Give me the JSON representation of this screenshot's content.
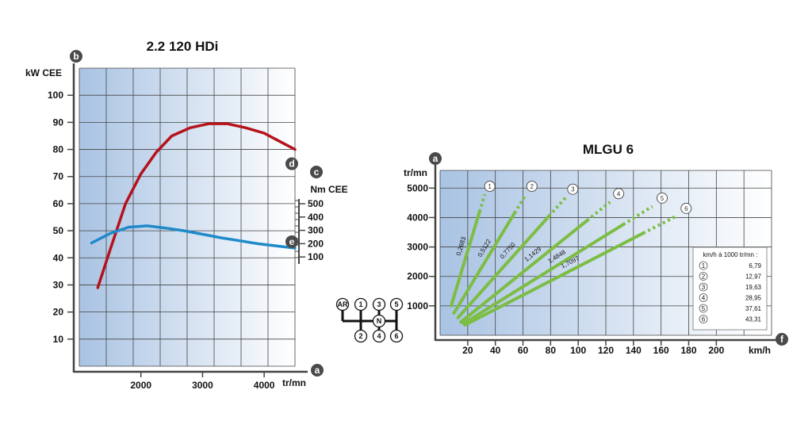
{
  "chart_data": [
    {
      "type": "line",
      "title": "2.2  120 HDi",
      "xlabel": "tr/mn",
      "x_ticks": [
        2000,
        3000,
        4000
      ],
      "xlim": [
        1000,
        4500
      ],
      "left_axis": {
        "badge": "b",
        "label": "kW CEE",
        "ticks": [
          10,
          20,
          30,
          40,
          50,
          60,
          70,
          80,
          90,
          100
        ],
        "ylim": [
          0,
          110
        ]
      },
      "right_axis": {
        "badge": "c",
        "label": "Nm CEE",
        "ticks": [
          100,
          200,
          300,
          400,
          500
        ]
      },
      "x_badge": "a",
      "series": [
        {
          "name": "d",
          "axis": "left",
          "color": "#b5121b",
          "x": [
            1300,
            1500,
            1750,
            2000,
            2250,
            2500,
            2800,
            3100,
            3400,
            3700,
            4000,
            4250,
            4500
          ],
          "y": [
            29,
            43,
            60,
            71,
            79,
            85,
            88,
            89.5,
            89.5,
            88,
            86,
            83,
            80
          ]
        },
        {
          "name": "e",
          "axis": "left",
          "color": "#1f8ac9",
          "x": [
            1200,
            1500,
            1800,
            2100,
            2400,
            2700,
            3000,
            3300,
            3600,
            3900,
            4200,
            4500
          ],
          "y": [
            45.5,
            49,
            51.3,
            51.8,
            51,
            50,
            48.7,
            47.4,
            46.3,
            45.2,
            44.4,
            43.6
          ]
        }
      ]
    },
    {
      "type": "line",
      "title": "MLGU 6",
      "xlabel": "km/h",
      "ylabel": "tr/mn",
      "x_badge": "f",
      "y_badge": "a",
      "x_ticks": [
        20,
        40,
        60,
        80,
        100,
        120,
        140,
        160,
        180,
        200
      ],
      "y_ticks": [
        1000,
        2000,
        3000,
        4000,
        5000
      ],
      "xlim": [
        0,
        240
      ],
      "ylim": [
        0,
        5600
      ],
      "series": [
        {
          "name": "1",
          "ratio": "0,2683",
          "color": "#7cbd43",
          "x": [
            8,
            33.1
          ],
          "y": [
            1000,
            4900
          ]
        },
        {
          "name": "2",
          "ratio": "0,5122",
          "color": "#7cbd43",
          "x": [
            10,
            63.6
          ],
          "y": [
            750,
            4900
          ]
        },
        {
          "name": "3",
          "ratio": "0,7750",
          "color": "#7cbd43",
          "x": [
            13,
            93.2
          ],
          "y": [
            600,
            4800
          ]
        },
        {
          "name": "4",
          "ratio": "1,1429",
          "color": "#7cbd43",
          "x": [
            15,
            126.4
          ],
          "y": [
            450,
            4650
          ]
        },
        {
          "name": "5",
          "ratio": "1,4848",
          "color": "#7cbd43",
          "x": [
            17,
            157.9
          ],
          "y": [
            400,
            4500
          ]
        },
        {
          "name": "6",
          "ratio": "1,7097",
          "color": "#7cbd43",
          "x": [
            18,
            175.3
          ],
          "y": [
            350,
            4150
          ]
        }
      ],
      "legend": {
        "title": "km/h à 1000 tr/mn :",
        "items": [
          {
            "gear": "1",
            "value": "6,79"
          },
          {
            "gear": "2",
            "value": "12,97"
          },
          {
            "gear": "3",
            "value": "19,63"
          },
          {
            "gear": "4",
            "value": "28,95"
          },
          {
            "gear": "5",
            "value": "37,61"
          },
          {
            "gear": "6",
            "value": "43,31"
          }
        ]
      }
    }
  ],
  "shift_pattern": {
    "top": [
      "AR",
      "1",
      "3",
      "5"
    ],
    "neutral": "N",
    "bottom": [
      "2",
      "4",
      "6"
    ]
  }
}
